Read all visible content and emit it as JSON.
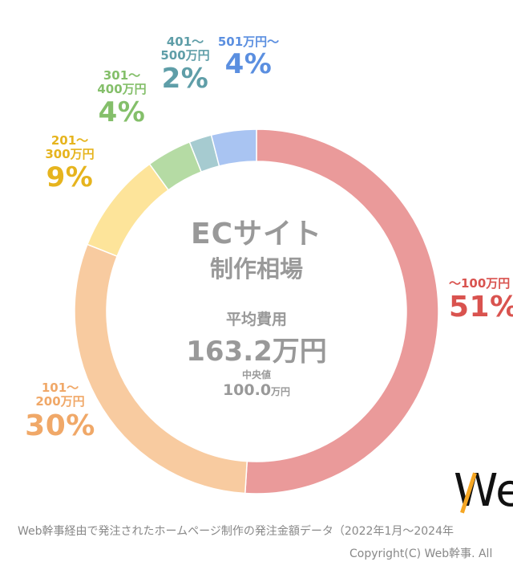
{
  "chart_data": {
    "type": "pie",
    "title": "ECサイト 制作相場",
    "title_line1": "ECサイト",
    "title_line2": "制作相場",
    "average_label": "平均費用",
    "average_value": "163.2万円",
    "median_label": "中央値",
    "median_value": "100.0",
    "median_unit": "万円",
    "slices": [
      {
        "label": "～100万円",
        "value": 51,
        "pct_label": "51%",
        "color": "#ea9a9a",
        "text_color": "#d9534f"
      },
      {
        "label": "101～200万円",
        "value": 30,
        "pct_label": "30%",
        "color": "#f8cba0",
        "text_color": "#f0a868"
      },
      {
        "label": "201～300万円",
        "value": 9,
        "pct_label": "9%",
        "color": "#fde49a",
        "text_color": "#e6b41e"
      },
      {
        "label": "301～400万円",
        "value": 4,
        "pct_label": "4%",
        "color": "#b5dba4",
        "text_color": "#84bf6a"
      },
      {
        "label": "401～500万円",
        "value": 2,
        "pct_label": "2%",
        "color": "#a6cbd0",
        "text_color": "#5f9ea8"
      },
      {
        "label": "501万円～",
        "value": 4,
        "pct_label": "4%",
        "color": "#a9c4f2",
        "text_color": "#5b8fe0"
      }
    ]
  },
  "labels": {
    "s0": {
      "range1": "～100万円",
      "pct": "51%"
    },
    "s1": {
      "range1": "101～",
      "range2": "200万円",
      "pct": "30%"
    },
    "s2": {
      "range1": "201～",
      "range2": "300万円",
      "pct": "9%"
    },
    "s3": {
      "range1": "301～",
      "range2": "400万円",
      "pct": "4%"
    },
    "s4": {
      "range1": "401～",
      "range2": "500万円",
      "pct": "2%"
    },
    "s5": {
      "range1": "501万円～",
      "pct": "4%"
    }
  },
  "logo_text": "We",
  "footer": {
    "note": "Web幹事経由で発注されたホームページ制作の発注金額データ（2022年1月～2024年",
    "copyright": "Copyright(C) Web幹事. All"
  }
}
